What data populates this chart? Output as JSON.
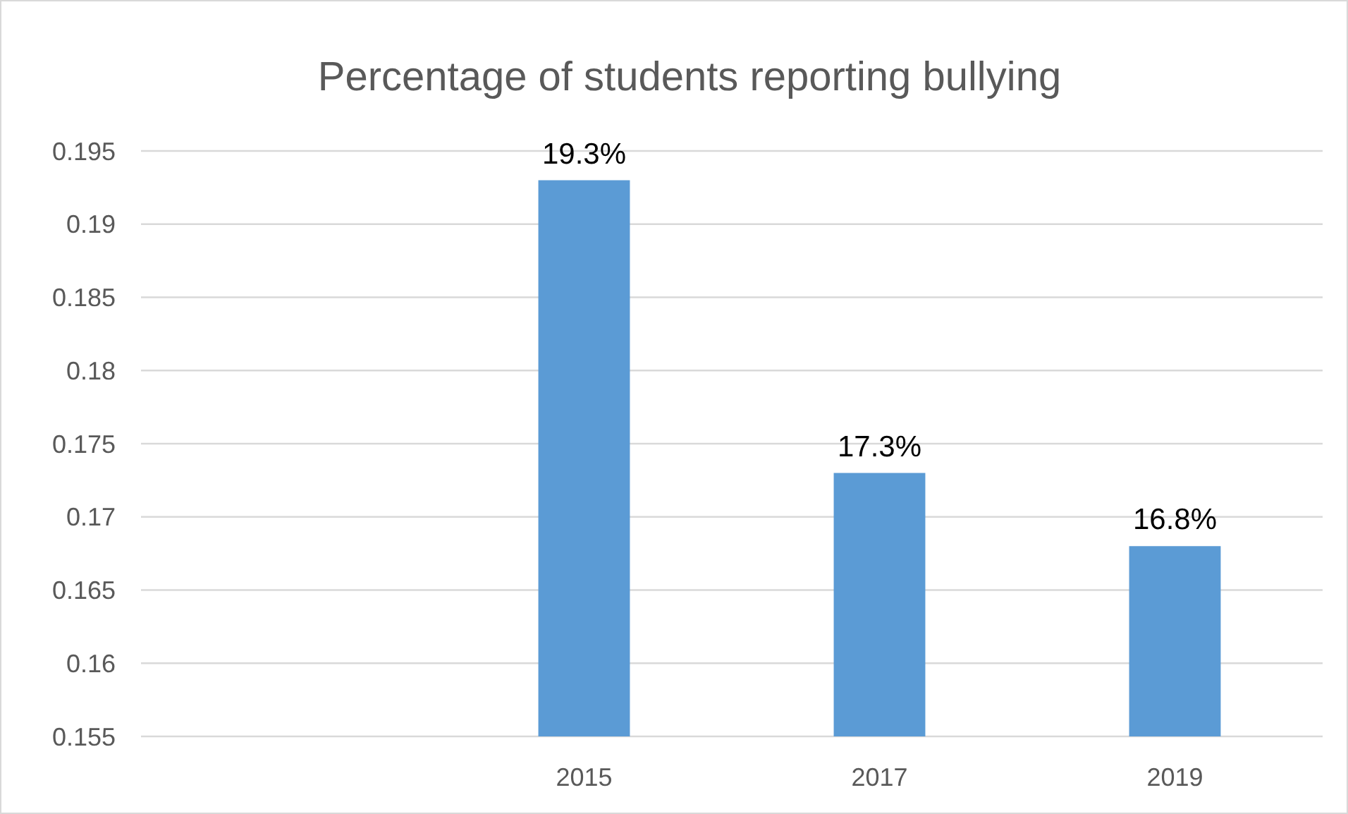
{
  "chart_data": {
    "type": "bar",
    "title": "Percentage of students reporting bullying",
    "categories": [
      null,
      "2015",
      "2017",
      "2019"
    ],
    "values": [
      null,
      0.193,
      0.173,
      0.168
    ],
    "value_labels": [
      null,
      "19.3%",
      "17.3%",
      "16.8%"
    ],
    "color": "#5b9bd5",
    "ylim": [
      0.155,
      0.195
    ],
    "yticks": [
      0.155,
      0.16,
      0.165,
      0.17,
      0.175,
      0.18,
      0.185,
      0.19,
      0.195
    ],
    "grid": "y"
  }
}
